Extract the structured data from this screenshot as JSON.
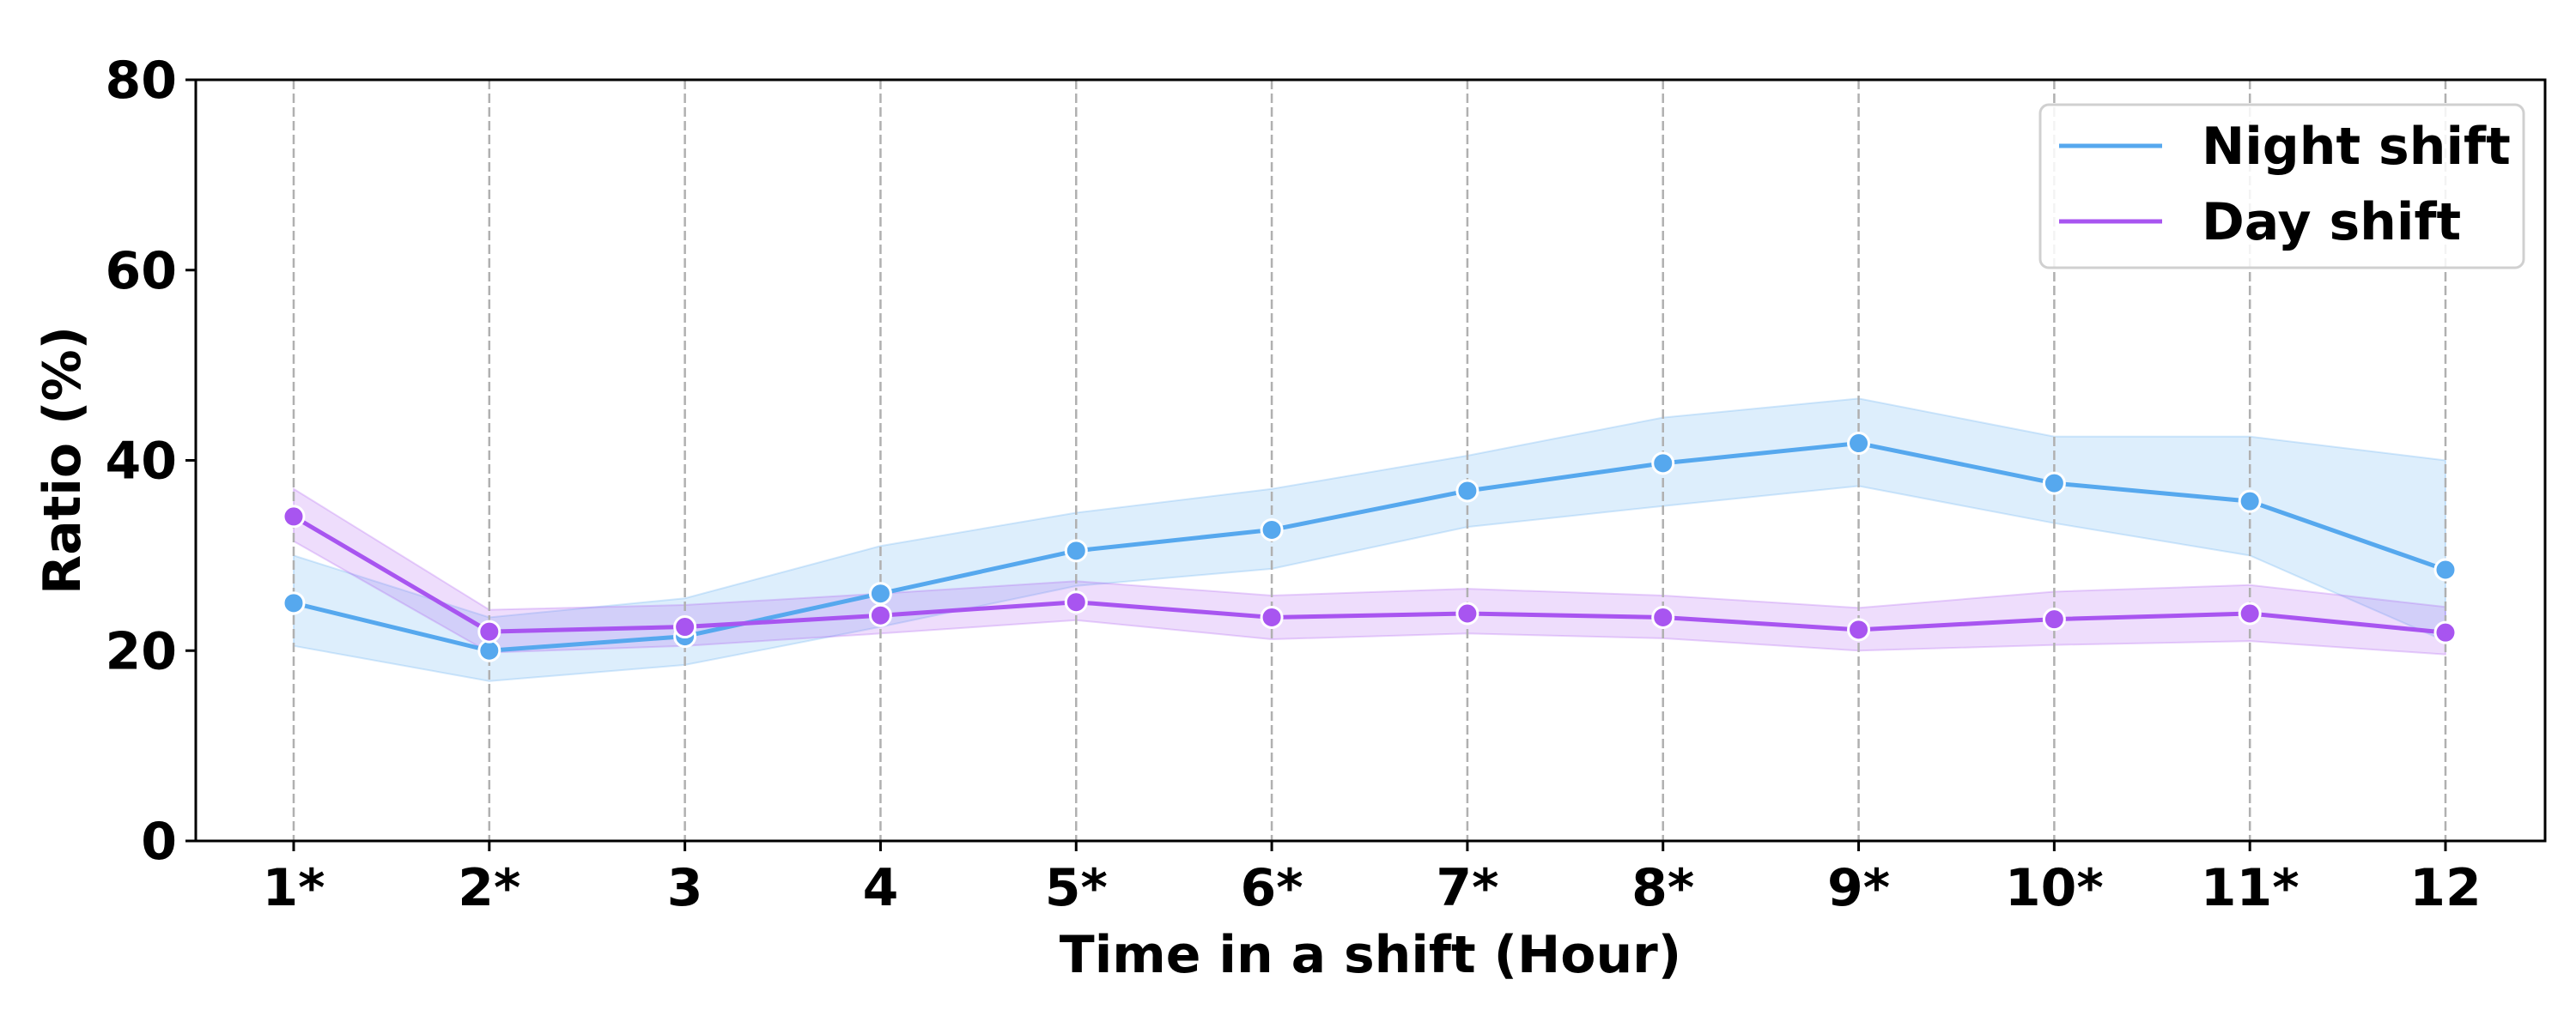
{
  "chart_data": {
    "type": "line",
    "title": "",
    "xlabel": "Time in a shift (Hour)",
    "ylabel": "Ratio (%)",
    "categories": [
      "1*",
      "2*",
      "3",
      "4",
      "5*",
      "6*",
      "7*",
      "8*",
      "9*",
      "10*",
      "11*",
      "12"
    ],
    "ylim": [
      0,
      80
    ],
    "yticks": [
      0,
      20,
      40,
      60,
      80
    ],
    "grid": "vertical dashed",
    "legend_position": "top-right",
    "series": [
      {
        "name": "Night shift",
        "color": "#56a8ee",
        "values": [
          25.0,
          20.0,
          21.5,
          26.0,
          30.5,
          32.7,
          36.8,
          39.7,
          41.8,
          37.6,
          35.7,
          28.5
        ],
        "ci_low": [
          20.5,
          16.8,
          18.5,
          22.5,
          26.8,
          28.6,
          33.0,
          35.2,
          37.3,
          33.4,
          30.0,
          21.0
        ],
        "ci_high": [
          30.0,
          23.5,
          25.5,
          31.0,
          34.5,
          37.0,
          40.5,
          44.5,
          46.5,
          42.5,
          42.5,
          40.0
        ]
      },
      {
        "name": "Day shift",
        "color": "#a855f0",
        "values": [
          34.1,
          22.0,
          22.5,
          23.7,
          25.1,
          23.5,
          23.9,
          23.5,
          22.2,
          23.3,
          23.9,
          21.9
        ],
        "ci_low": [
          31.5,
          19.8,
          20.5,
          21.8,
          23.2,
          21.2,
          21.8,
          21.3,
          20.0,
          20.6,
          21.0,
          19.6
        ],
        "ci_high": [
          37.0,
          24.3,
          24.8,
          26.0,
          27.3,
          25.8,
          26.5,
          25.8,
          24.5,
          26.2,
          26.9,
          24.6
        ]
      }
    ]
  }
}
